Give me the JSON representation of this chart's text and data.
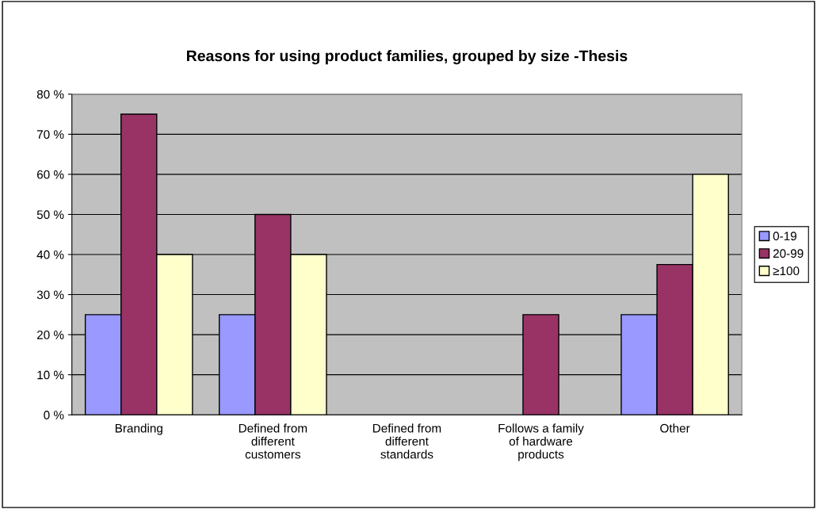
{
  "chart_data": {
    "type": "bar",
    "title": "Reasons for using product families, grouped by size -Thesis",
    "categories": [
      "Branding",
      "Defined from\ndifferent\ncustomers",
      "Defined from\ndifferent\nstandards",
      "Follows a family\nof hardware\nproducts",
      "Other"
    ],
    "series": [
      {
        "name": "0-19",
        "color": "#9999ff",
        "values": [
          25,
          25,
          null,
          null,
          25
        ]
      },
      {
        "name": "20-99",
        "color": "#993366",
        "values": [
          75,
          50,
          null,
          25,
          37.5
        ]
      },
      {
        "name": "≥100",
        "color": "#ffffcc",
        "values": [
          40,
          40,
          null,
          null,
          60
        ]
      }
    ],
    "ylim": [
      0,
      80
    ],
    "yticks": [
      {
        "value": 0,
        "label": "0 %"
      },
      {
        "value": 10,
        "label": "10 %"
      },
      {
        "value": 20,
        "label": "20 %"
      },
      {
        "value": 30,
        "label": "30 %"
      },
      {
        "value": 40,
        "label": "40 %"
      },
      {
        "value": 50,
        "label": "50 %"
      },
      {
        "value": 60,
        "label": "60 %"
      },
      {
        "value": 70,
        "label": "70 %"
      },
      {
        "value": 80,
        "label": "80 %"
      }
    ],
    "grid": "y",
    "legend": "right"
  }
}
